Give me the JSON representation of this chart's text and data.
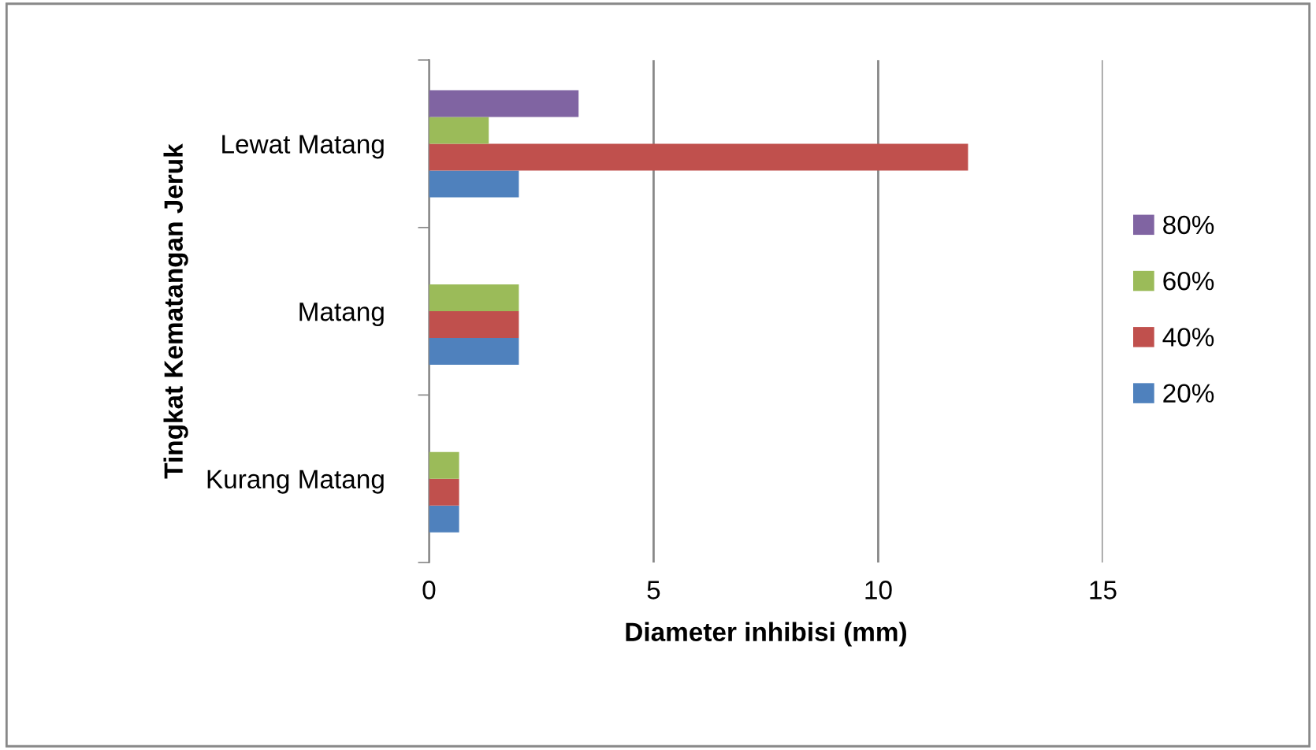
{
  "chart_data": {
    "type": "bar",
    "orientation": "horizontal",
    "xlabel": "Diameter inhibisi (mm)",
    "ylabel": "Tingkat Kematangan Jeruk",
    "categories": [
      "Lewat Matang",
      "Matang",
      "Kurang Matang"
    ],
    "series": [
      {
        "name": "20%",
        "color": "#4f81bd",
        "values": [
          2,
          2,
          0.67
        ]
      },
      {
        "name": "40%",
        "color": "#c0504d",
        "values": [
          12,
          2,
          0.67
        ]
      },
      {
        "name": "60%",
        "color": "#9bbb59",
        "values": [
          1.33,
          2,
          0.67
        ]
      },
      {
        "name": "80%",
        "color": "#8064a2",
        "values": [
          3.33,
          null,
          null
        ]
      }
    ],
    "xlim": [
      0,
      15
    ],
    "xticks": [
      0,
      5,
      10,
      15
    ],
    "grid": "x",
    "legend": "right"
  }
}
